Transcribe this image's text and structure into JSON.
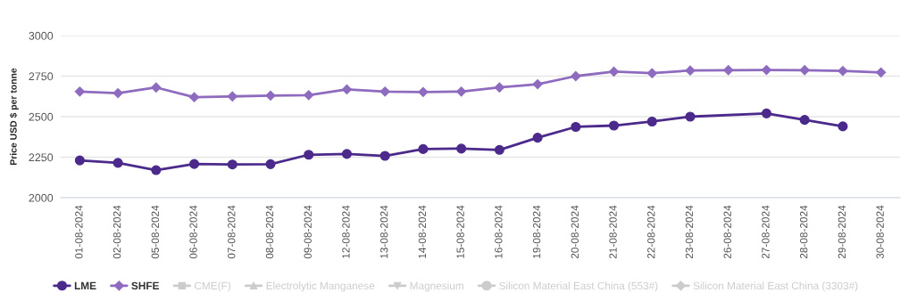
{
  "chart_data": {
    "type": "line",
    "ylabel": "Price USD $ per tonne",
    "categories": [
      "01-08-2024",
      "02-08-2024",
      "05-08-2024",
      "06-08-2024",
      "07-08-2024",
      "08-08-2024",
      "09-08-2024",
      "12-08-2024",
      "13-08-2024",
      "14-08-2024",
      "15-08-2024",
      "16-08-2024",
      "19-08-2024",
      "20-08-2024",
      "21-08-2024",
      "22-08-2024",
      "23-08-2024",
      "26-08-2024",
      "27-08-2024",
      "28-08-2024",
      "29-08-2024",
      "30-08-2024"
    ],
    "series": [
      {
        "name": "LME",
        "color": "#4b2a8c",
        "marker": "circle",
        "values": [
          2230,
          2215,
          2170,
          2208,
          2205,
          2207,
          2265,
          2270,
          2258,
          2300,
          2303,
          2295,
          2370,
          2437,
          2445,
          2470,
          2500,
          null,
          2520,
          2480,
          2440,
          null
        ]
      },
      {
        "name": "SHFE",
        "color": "#8e6bbf",
        "marker": "diamond",
        "values": [
          2655,
          2645,
          2680,
          2620,
          2625,
          2630,
          2633,
          2668,
          2655,
          2652,
          2655,
          2680,
          2700,
          2750,
          2778,
          2768,
          2785,
          2787,
          2788,
          2787,
          2782,
          2773
        ]
      },
      {
        "name": "CME(F)",
        "color": "#cccccc",
        "marker": "square",
        "values": [
          null,
          null,
          null,
          null,
          null,
          null,
          null,
          null,
          null,
          null,
          null,
          null,
          null,
          null,
          null,
          null,
          null,
          null,
          null,
          null,
          null,
          null
        ]
      },
      {
        "name": "Electrolytic Manganese",
        "color": "#cccccc",
        "marker": "triangle",
        "values": [
          null,
          null,
          null,
          null,
          null,
          null,
          null,
          null,
          null,
          null,
          null,
          null,
          null,
          null,
          null,
          null,
          null,
          null,
          null,
          null,
          null,
          null
        ]
      },
      {
        "name": "Magnesium",
        "color": "#cccccc",
        "marker": "triangle_down",
        "values": [
          null,
          null,
          null,
          null,
          null,
          null,
          null,
          null,
          null,
          null,
          null,
          null,
          null,
          null,
          null,
          null,
          null,
          null,
          null,
          null,
          null,
          null
        ]
      },
      {
        "name": "Silicon Material East China (553#)",
        "color": "#cccccc",
        "marker": "circle",
        "values": [
          null,
          null,
          null,
          null,
          null,
          null,
          null,
          null,
          null,
          null,
          null,
          null,
          null,
          null,
          null,
          null,
          null,
          null,
          null,
          null,
          null,
          null
        ]
      },
      {
        "name": "Silicon Material East China (3303#)",
        "color": "#cccccc",
        "marker": "diamond",
        "values": [
          null,
          null,
          null,
          null,
          null,
          null,
          null,
          null,
          null,
          null,
          null,
          null,
          null,
          null,
          null,
          null,
          null,
          null,
          null,
          null,
          null,
          null
        ]
      }
    ],
    "ylim": [
      2000,
      3000
    ],
    "yticks": [
      2000,
      2250,
      2500,
      2750,
      3000
    ],
    "grid": "y",
    "legend": "bottom"
  }
}
